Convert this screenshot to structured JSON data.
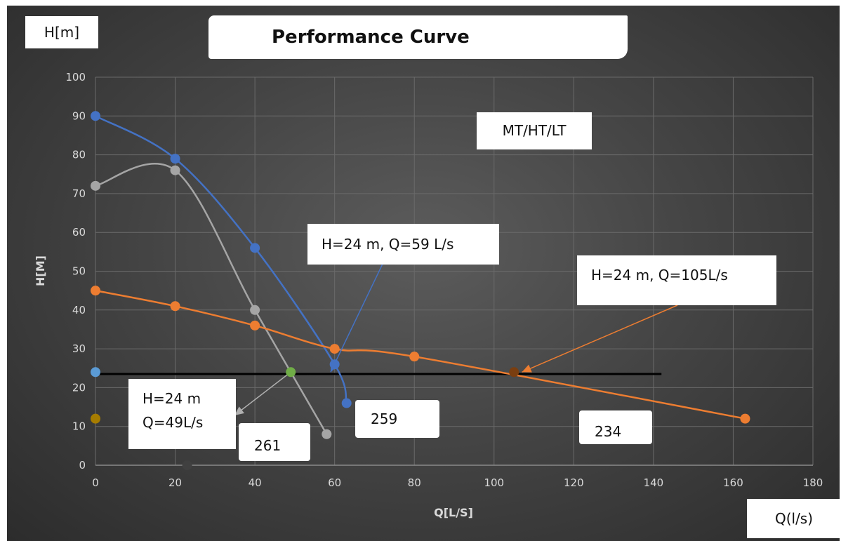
{
  "title": "Performance Curve",
  "y_unit_label": "H[m]",
  "x_unit_label": "Q(l/s)",
  "pump_types_label": "MT/HT/LT",
  "callouts": {
    "op_259": "H=24 m, Q=59 L/s",
    "op_234": "H=24 m, Q=105L/s",
    "op_261_line1": "H=24 m",
    "op_261_line2": "Q=49L/s"
  },
  "series_tags": {
    "a": "259",
    "b": "261",
    "c": "234"
  },
  "chart_data": {
    "type": "scatter",
    "title": "Performance Curve",
    "xlabel": "Q[L/S]",
    "ylabel": "H[M]",
    "xlim": [
      0,
      180
    ],
    "ylim": [
      0,
      100
    ],
    "x_ticks": [
      0,
      20,
      40,
      60,
      80,
      100,
      120,
      140,
      160,
      180
    ],
    "y_ticks": [
      0,
      10,
      20,
      30,
      40,
      50,
      60,
      70,
      80,
      90,
      100
    ],
    "grid": true,
    "series": [
      {
        "name": "259",
        "color": "#4472c4",
        "x": [
          0,
          20,
          40,
          60,
          63
        ],
        "y": [
          90,
          79,
          56,
          26,
          16
        ]
      },
      {
        "name": "261",
        "color": "#a5a5a5",
        "x": [
          0,
          20,
          40,
          58
        ],
        "y": [
          72,
          76,
          40,
          8
        ]
      },
      {
        "name": "234",
        "color": "#ed7d31",
        "x": [
          0,
          20,
          40,
          60,
          80,
          163
        ],
        "y": [
          45,
          41,
          36,
          30,
          28,
          12
        ]
      }
    ],
    "system_line": {
      "color": "#000000",
      "x": [
        0,
        142
      ],
      "y": [
        23.5,
        23.5
      ]
    },
    "markers": [
      {
        "x": 0,
        "y": 24,
        "color": "#5b9bd5"
      },
      {
        "x": 0,
        "y": 12,
        "color": "#a67c00"
      },
      {
        "x": 23,
        "y": 0,
        "color": "#404040"
      },
      {
        "x": 49,
        "y": 24,
        "color": "#70ad47"
      },
      {
        "x": 105,
        "y": 24,
        "color": "#7a3e10"
      }
    ],
    "operating_points": [
      {
        "x": 59,
        "y": 24,
        "color": "#4472c4"
      },
      {
        "x": 49,
        "y": 24,
        "color": "#a5a5a5"
      },
      {
        "x": 105,
        "y": 24,
        "color": "#ed7d31"
      }
    ]
  }
}
